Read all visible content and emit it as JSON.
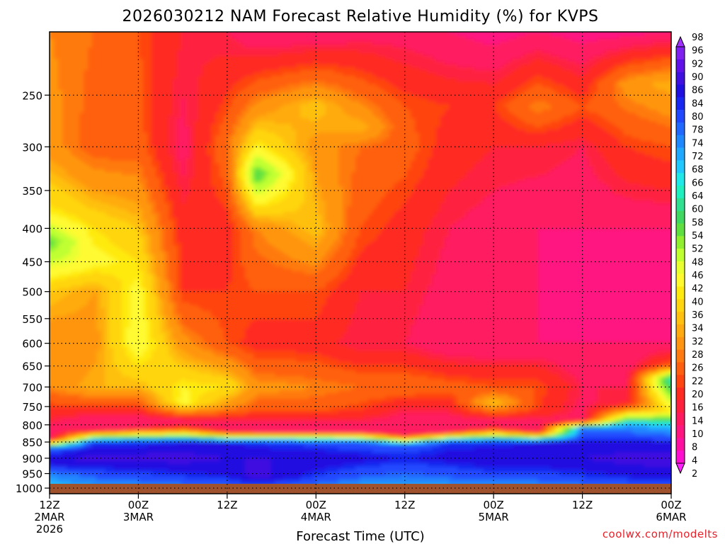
{
  "chart_data": {
    "type": "heatmap",
    "title": "2026030212 NAM Forecast Relative Humidity (%) for KVPS",
    "xlabel": "Forecast Time (UTC)",
    "ylabel": "",
    "credit": "coolwx.com/modelts",
    "x_ticks": [
      {
        "hours": 0,
        "lines": [
          "12Z",
          "2MAR",
          "2026"
        ]
      },
      {
        "hours": 12,
        "lines": [
          "00Z",
          "3MAR"
        ]
      },
      {
        "hours": 24,
        "lines": [
          "12Z"
        ]
      },
      {
        "hours": 36,
        "lines": [
          "00Z",
          "4MAR"
        ]
      },
      {
        "hours": 48,
        "lines": [
          "12Z"
        ]
      },
      {
        "hours": 60,
        "lines": [
          "00Z",
          "5MAR"
        ]
      },
      {
        "hours": 72,
        "lines": [
          "12Z"
        ]
      },
      {
        "hours": 84,
        "lines": [
          "00Z",
          "6MAR"
        ]
      }
    ],
    "xlim": [
      0,
      84
    ],
    "y_ticks": [
      250,
      300,
      350,
      400,
      450,
      500,
      550,
      600,
      650,
      700,
      750,
      800,
      850,
      900,
      950,
      1000
    ],
    "ylim": [
      1020,
      200
    ],
    "y_scale": "log",
    "grid": true,
    "colorbar": {
      "levels": [
        2,
        4,
        8,
        10,
        14,
        16,
        20,
        22,
        26,
        28,
        32,
        34,
        36,
        40,
        42,
        46,
        48,
        52,
        54,
        58,
        60,
        64,
        66,
        68,
        72,
        74,
        78,
        80,
        84,
        86,
        90,
        92,
        96,
        98
      ],
      "colors": [
        "#ff20ff",
        "#ff10d0",
        "#ff10a0",
        "#ff1580",
        "#ff1a60",
        "#ff2040",
        "#ff2a20",
        "#ff4510",
        "#ff6010",
        "#ff7a10",
        "#ff9510",
        "#ffaa10",
        "#ffc010",
        "#ffd510",
        "#ffea10",
        "#fffa30",
        "#e8ff30",
        "#c0ff30",
        "#90f030",
        "#60e040",
        "#40d860",
        "#30e090",
        "#20f0c0",
        "#20e8e8",
        "#20c8ff",
        "#20a8ff",
        "#2088ff",
        "#2068ff",
        "#2048ff",
        "#1828f0",
        "#2010e0",
        "#4010e0",
        "#6010e8",
        "#8020f0",
        "#a030ff"
      ]
    },
    "rh_profiles": [
      {
        "x": 0,
        "p": [
          200,
          300,
          380,
          420,
          500,
          600,
          700,
          780,
          840,
          870,
          910,
          960,
          1000,
          1020
        ],
        "rh": [
          28,
          30,
          42,
          56,
          36,
          28,
          28,
          16,
          10,
          80,
          90,
          74,
          70,
          68
        ]
      },
      {
        "x": 6,
        "p": [
          200,
          300,
          400,
          450,
          500,
          600,
          700,
          790,
          815,
          850,
          900,
          960,
          1000,
          1020
        ],
        "rh": [
          26,
          24,
          40,
          44,
          32,
          30,
          34,
          10,
          12,
          84,
          92,
          80,
          72,
          70
        ]
      },
      {
        "x": 12,
        "p": [
          200,
          300,
          400,
          500,
          600,
          650,
          700,
          790,
          810,
          850,
          900,
          960,
          1000,
          1020
        ],
        "rh": [
          22,
          24,
          36,
          44,
          46,
          40,
          34,
          10,
          14,
          84,
          92,
          82,
          74,
          70
        ]
      },
      {
        "x": 18,
        "p": [
          200,
          300,
          400,
          500,
          600,
          700,
          740,
          790,
          810,
          850,
          900,
          960,
          1000,
          1020
        ],
        "rh": [
          16,
          12,
          18,
          20,
          30,
          42,
          44,
          12,
          20,
          86,
          92,
          84,
          76,
          72
        ]
      },
      {
        "x": 24,
        "p": [
          200,
          300,
          400,
          500,
          600,
          700,
          750,
          800,
          820,
          850,
          900,
          960,
          1000,
          1020
        ],
        "rh": [
          14,
          26,
          18,
          20,
          22,
          40,
          30,
          10,
          16,
          86,
          90,
          86,
          78,
          72
        ]
      },
      {
        "x": 28,
        "p": [
          200,
          300,
          330,
          400,
          500,
          600,
          700,
          750,
          800,
          820,
          850,
          900,
          960,
          1000,
          1020
        ],
        "rh": [
          10,
          42,
          58,
          28,
          22,
          18,
          30,
          24,
          12,
          14,
          84,
          90,
          92,
          80,
          74
        ]
      },
      {
        "x": 36,
        "p": [
          200,
          260,
          300,
          400,
          500,
          600,
          700,
          750,
          800,
          820,
          850,
          900,
          960,
          1000,
          1020
        ],
        "rh": [
          10,
          36,
          30,
          36,
          22,
          18,
          28,
          24,
          12,
          14,
          82,
          90,
          84,
          76,
          72
        ]
      },
      {
        "x": 42,
        "p": [
          200,
          280,
          300,
          400,
          500,
          600,
          700,
          760,
          800,
          820,
          850,
          900,
          960,
          1000,
          1020
        ],
        "rh": [
          12,
          34,
          26,
          22,
          16,
          14,
          26,
          20,
          12,
          14,
          80,
          88,
          80,
          72,
          70
        ]
      },
      {
        "x": 48,
        "p": [
          200,
          260,
          300,
          400,
          500,
          600,
          700,
          750,
          800,
          830,
          860,
          900,
          960,
          1000,
          1020
        ],
        "rh": [
          12,
          22,
          24,
          18,
          16,
          14,
          26,
          16,
          10,
          14,
          80,
          86,
          78,
          70,
          68
        ]
      },
      {
        "x": 54,
        "p": [
          200,
          260,
          300,
          400,
          500,
          600,
          700,
          740,
          800,
          820,
          850,
          900,
          960,
          1000,
          1020
        ],
        "rh": [
          10,
          20,
          18,
          14,
          12,
          10,
          24,
          18,
          10,
          14,
          84,
          88,
          80,
          72,
          70
        ]
      },
      {
        "x": 60,
        "p": [
          200,
          260,
          300,
          400,
          500,
          600,
          700,
          740,
          790,
          810,
          850,
          900,
          960,
          1000,
          1020
        ],
        "rh": [
          8,
          20,
          16,
          12,
          12,
          10,
          22,
          36,
          12,
          16,
          84,
          90,
          82,
          74,
          70
        ]
      },
      {
        "x": 66,
        "p": [
          200,
          260,
          300,
          400,
          500,
          600,
          700,
          760,
          800,
          820,
          850,
          900,
          960,
          1000,
          1020
        ],
        "rh": [
          10,
          28,
          16,
          10,
          10,
          10,
          22,
          20,
          10,
          14,
          86,
          90,
          82,
          74,
          70
        ]
      },
      {
        "x": 72,
        "p": [
          200,
          260,
          300,
          400,
          500,
          600,
          700,
          780,
          790,
          810,
          850,
          900,
          960,
          1000,
          1020
        ],
        "rh": [
          8,
          22,
          14,
          10,
          8,
          10,
          14,
          12,
          16,
          78,
          86,
          90,
          84,
          76,
          72
        ]
      },
      {
        "x": 78,
        "p": [
          200,
          240,
          300,
          400,
          500,
          600,
          700,
          740,
          760,
          800,
          850,
          900,
          960,
          1000,
          1020
        ],
        "rh": [
          8,
          30,
          20,
          10,
          8,
          10,
          14,
          16,
          30,
          74,
          86,
          92,
          86,
          78,
          74
        ]
      },
      {
        "x": 84,
        "p": [
          200,
          240,
          300,
          400,
          500,
          600,
          650,
          680,
          720,
          760,
          800,
          850,
          900,
          960,
          1000,
          1020
        ],
        "rh": [
          10,
          34,
          22,
          10,
          8,
          10,
          24,
          66,
          54,
          40,
          68,
          86,
          92,
          88,
          80,
          76
        ]
      }
    ]
  }
}
